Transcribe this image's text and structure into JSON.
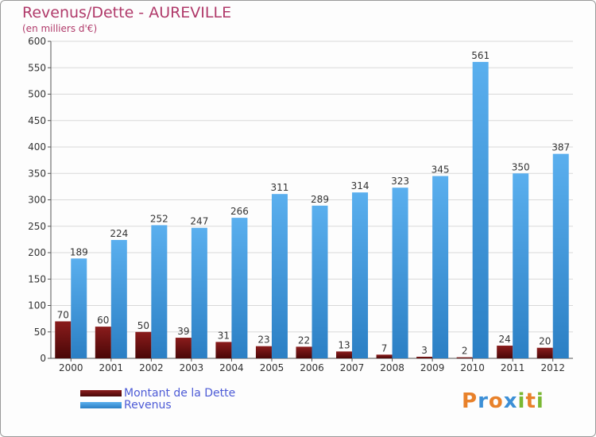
{
  "chart_data": {
    "type": "bar",
    "title": "Revenus/Dette - AUREVILLE",
    "subtitle": "(en milliers d'€)",
    "categories": [
      "2000",
      "2001",
      "2002",
      "2003",
      "2004",
      "2005",
      "2006",
      "2007",
      "2008",
      "2009",
      "2010",
      "2011",
      "2012"
    ],
    "series": [
      {
        "name": "Montant de la Dette",
        "color": "#7a1010",
        "values": [
          70,
          60,
          50,
          39,
          31,
          23,
          22,
          13,
          7,
          3,
          2,
          24,
          20
        ]
      },
      {
        "name": "Revenus",
        "color": "#4aa3e8",
        "values": [
          189,
          224,
          252,
          247,
          266,
          311,
          289,
          314,
          323,
          345,
          561,
          350,
          387
        ]
      }
    ],
    "ylim": [
      0,
      600
    ],
    "yticks": [
      0,
      50,
      100,
      150,
      200,
      250,
      300,
      350,
      400,
      450,
      500,
      550,
      600
    ],
    "grid": true,
    "legend_position": "bottom-left"
  },
  "logo": {
    "text": "Proxiti",
    "colors": [
      "#e8812a",
      "#3c8fd6",
      "#e8812a",
      "#3c8fd6",
      "#7ab833",
      "#e8812a",
      "#7ab833"
    ]
  }
}
